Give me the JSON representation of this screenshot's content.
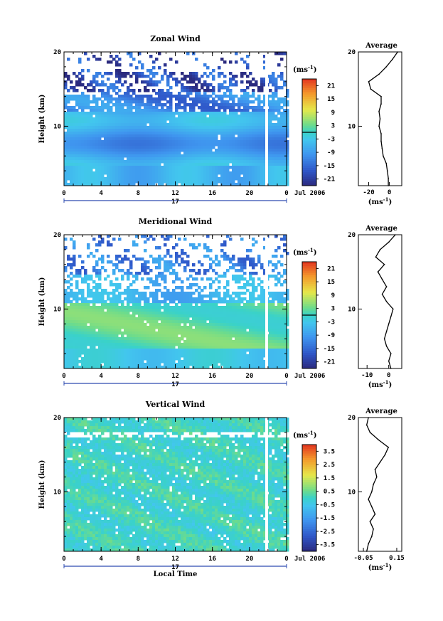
{
  "chart_data": [
    {
      "type": "heatmap",
      "title": "Zonal Wind",
      "ylabel": "Height (km)",
      "ylim": [
        2,
        20
      ],
      "xlim": [
        0,
        24
      ],
      "x_ticks": [
        "0",
        "4",
        "8",
        "12",
        "16",
        "20",
        "0"
      ],
      "y_ticks": [
        "20",
        "10"
      ],
      "day_label": "17",
      "date_label": "Jul 2006",
      "colorbar": {
        "unit": "(ms",
        "unit_sup": "-1",
        "unit_close": ")",
        "ticks": [
          "21",
          "15",
          "9",
          "3",
          "-3",
          "-9",
          "-15",
          "-21"
        ],
        "range": [
          -24,
          24
        ]
      },
      "profile": {
        "title": "Average",
        "xlabel": "(ms",
        "xlabel_sup": "-1",
        "xlabel_close": ")",
        "x_ticks": [
          "-20",
          "0"
        ],
        "x_tick_values": [
          -20,
          0
        ],
        "xlim": [
          -30,
          12
        ],
        "y_ticks": [
          "20",
          "10"
        ],
        "heights": [
          2,
          3,
          4,
          5,
          6,
          7,
          8,
          9,
          10,
          11,
          12,
          13,
          14,
          15,
          16,
          17,
          18,
          19,
          20
        ],
        "values": [
          -1,
          -1,
          -2,
          -3,
          -6,
          -7,
          -8,
          -8,
          -10,
          -9,
          -10,
          -8,
          -8,
          -18,
          -20,
          -10,
          -3,
          3,
          8
        ]
      }
    },
    {
      "type": "heatmap",
      "title": "Meridional Wind",
      "ylabel": "Height (km)",
      "ylim": [
        2,
        20
      ],
      "xlim": [
        0,
        24
      ],
      "x_ticks": [
        "0",
        "4",
        "8",
        "12",
        "16",
        "20",
        "0"
      ],
      "y_ticks": [
        "20",
        "10"
      ],
      "day_label": "17",
      "date_label": "Jul 2006",
      "colorbar": {
        "unit": "(ms",
        "unit_sup": "-1",
        "unit_close": ")",
        "ticks": [
          "21",
          "15",
          "9",
          "3",
          "-3",
          "-9",
          "-15",
          "-21"
        ],
        "range": [
          -24,
          24
        ]
      },
      "profile": {
        "title": "Average",
        "xlabel": "(ms",
        "xlabel_sup": "-1",
        "xlabel_close": ")",
        "x_ticks": [
          "-10",
          "0"
        ],
        "x_tick_values": [
          -10,
          0
        ],
        "xlim": [
          -14,
          6
        ],
        "y_ticks": [
          "20",
          "10"
        ],
        "heights": [
          2,
          3,
          4,
          5,
          6,
          7,
          8,
          9,
          10,
          11,
          12,
          13,
          14,
          15,
          16,
          17,
          18,
          19,
          20
        ],
        "values": [
          1,
          0,
          1,
          -1,
          -2,
          -1,
          0,
          1,
          2,
          -1,
          -3,
          -1,
          -3,
          -5,
          -2,
          -6,
          -4,
          0,
          3
        ]
      }
    },
    {
      "type": "heatmap",
      "title": "Vertical Wind",
      "ylabel": "Height (km)",
      "ylim": [
        2,
        20
      ],
      "xlim": [
        0,
        24
      ],
      "x_ticks": [
        "0",
        "4",
        "8",
        "12",
        "16",
        "20",
        "0"
      ],
      "y_ticks": [
        "20",
        "10"
      ],
      "day_label": "17",
      "date_label": "Jul 2006",
      "xlabel": "Local Time",
      "colorbar": {
        "unit": "(ms",
        "unit_sup": "-1",
        "unit_close": ")",
        "ticks": [
          "3.5",
          "2.5",
          "1.5",
          "0.5",
          "-0.5",
          "-1.5",
          "-2.5",
          "-3.5"
        ],
        "range": [
          -4,
          4
        ]
      },
      "profile": {
        "title": "Average",
        "xlabel": "(ms",
        "xlabel_sup": "-1",
        "xlabel_close": ")",
        "x_ticks": [
          "-0.05",
          "0.15"
        ],
        "x_tick_values": [
          -0.05,
          0.15
        ],
        "xlim": [
          -0.08,
          0.18
        ],
        "y_ticks": [
          "20",
          "10"
        ],
        "heights": [
          2,
          3,
          4,
          5,
          6,
          7,
          8,
          9,
          10,
          11,
          12,
          13,
          14,
          15,
          16,
          17,
          18,
          19,
          20
        ],
        "values": [
          -0.03,
          -0.02,
          0.0,
          0.01,
          -0.01,
          0.02,
          0.0,
          -0.02,
          0.0,
          0.01,
          0.03,
          0.02,
          0.05,
          0.08,
          0.1,
          0.04,
          -0.01,
          -0.03,
          -0.02
        ]
      }
    }
  ]
}
